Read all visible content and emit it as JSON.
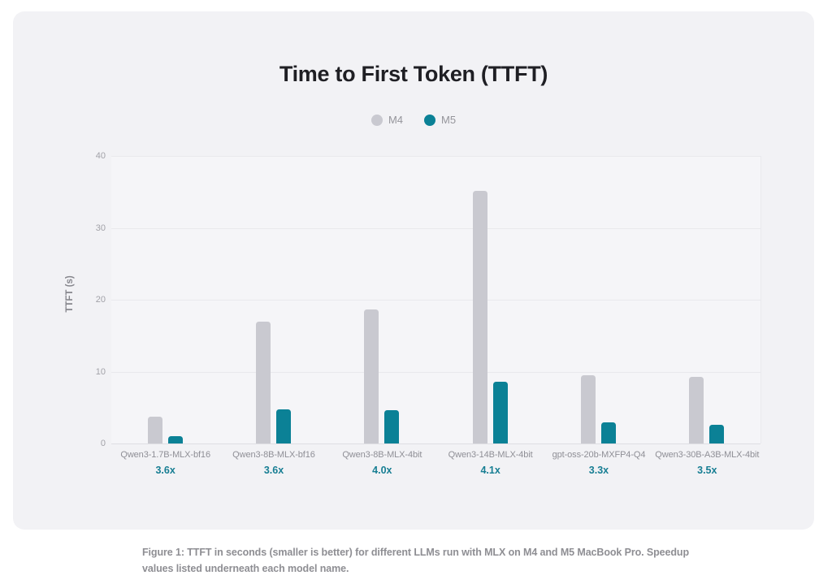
{
  "figure": {
    "caption": "Figure 1: TTFT in seconds (smaller is better) for different LLMs run with MLX on M4 and M5 MacBook Pro. Speedup values listed underneath each model name."
  },
  "colors": {
    "page_bg": "#ffffff",
    "card_bg": "#f2f2f5",
    "plot_bg": "#f5f5f8",
    "grid_line": "#e9e9ed",
    "baseline": "#dedee3",
    "m4_bar": "#c9c9d0",
    "m5_bar": "#0b8196",
    "speedup_text": "#177e93",
    "title_text": "#1f1f24",
    "tick_text": "#a2a2a8",
    "model_text": "#8f8f96",
    "caption_text": "#8e8e93"
  },
  "chart_data": {
    "type": "bar",
    "title": "Time to First Token (TTFT)",
    "xlabel": "",
    "ylabel": "TTFT (s)",
    "ylim": [
      0,
      40
    ],
    "yticks": [
      0,
      10,
      20,
      30,
      40
    ],
    "grid": true,
    "legend_position": "top-center",
    "categories": [
      "Qwen3-1.7B-MLX-bf16",
      "Qwen3-8B-MLX-bf16",
      "Qwen3-8B-MLX-4bit",
      "Qwen3-14B-MLX-4bit",
      "gpt-oss-20b-MXFP4-Q4",
      "Qwen3-30B-A3B-MLX-4bit"
    ],
    "speedups": [
      "3.6x",
      "3.6x",
      "4.0x",
      "4.1x",
      "3.3x",
      "3.5x"
    ],
    "series": [
      {
        "name": "M4",
        "color": "#c9c9d0",
        "values": [
          3.7,
          16.9,
          18.6,
          35.1,
          9.5,
          9.3
        ]
      },
      {
        "name": "M5",
        "color": "#0b8196",
        "values": [
          1.0,
          4.7,
          4.6,
          8.6,
          2.9,
          2.6
        ]
      }
    ]
  }
}
